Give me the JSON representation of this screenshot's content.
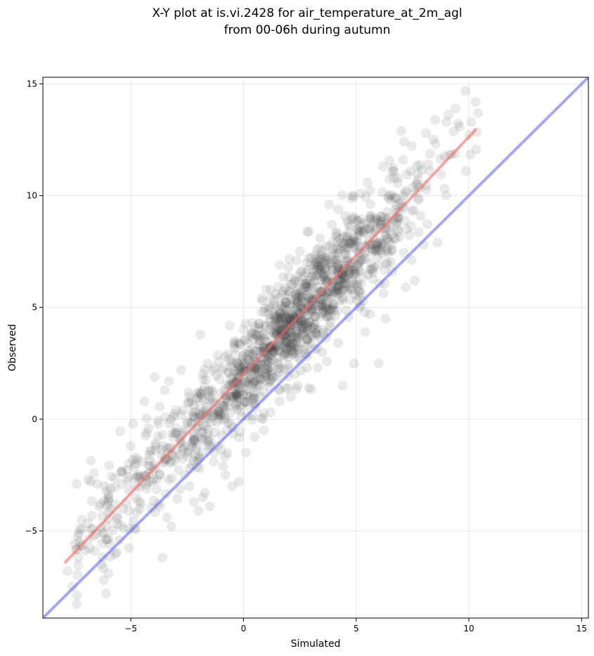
{
  "chart_data": {
    "type": "scatter",
    "title": "X-Y plot at is.vi.2428 for air_temperature_at_2m_agl",
    "subtitle": "from 00-06h during autumn",
    "xlabel": "Simulated",
    "ylabel": "Observed",
    "xlim": [
      -8.9,
      15.3
    ],
    "ylim": [
      -8.9,
      15.3
    ],
    "xticks": [
      -5,
      0,
      5,
      10,
      15
    ],
    "yticks": [
      -5,
      0,
      5,
      10,
      15
    ],
    "xtick_labels": [
      "−5",
      "0",
      "5",
      "10",
      "15"
    ],
    "ytick_labels": [
      "−5",
      "0",
      "5",
      "10",
      "15"
    ],
    "grid": true,
    "colors": {
      "points": "#333333",
      "fit_line": "#f26b6b",
      "identity_line": "#6b6bf2"
    },
    "lines": [
      {
        "kind": "identity",
        "x": [
          -8.9,
          15.3
        ],
        "y": [
          -8.9,
          15.3
        ]
      },
      {
        "kind": "fit",
        "x": [
          -7.9,
          10.3
        ],
        "y": [
          -6.4,
          12.95
        ]
      }
    ],
    "points": {
      "n": 1500,
      "cluster_slope": 1.06,
      "cluster_intercept": 1.97,
      "points": [
        [
          -7.8,
          -6.8
        ],
        [
          -7.6,
          -7.5
        ],
        [
          -7.3,
          -5.5
        ],
        [
          -7.4,
          -2.9
        ],
        [
          -6.9,
          -2.7
        ],
        [
          -6.5,
          -2.9
        ],
        [
          -6.6,
          -5.9
        ],
        [
          -6.3,
          -6.5
        ],
        [
          -6.2,
          -7.2
        ],
        [
          -6.1,
          -7.8
        ],
        [
          -6.0,
          -6.9
        ],
        [
          -5.9,
          -3.1
        ],
        [
          -5.7,
          -3.8
        ],
        [
          -5.5,
          -5.4
        ],
        [
          -5.3,
          -4.9
        ],
        [
          -5.1,
          -2.6
        ],
        [
          -5.0,
          -1.2
        ],
        [
          -4.9,
          -0.2
        ],
        [
          -4.7,
          -2.5
        ],
        [
          -4.6,
          -4.0
        ],
        [
          -4.4,
          0.8
        ],
        [
          -4.3,
          -0.6
        ],
        [
          -4.0,
          -2.7
        ],
        [
          -3.9,
          -2.2
        ],
        [
          -3.7,
          -3.9
        ],
        [
          -3.6,
          -6.2
        ],
        [
          -3.4,
          -4.4
        ],
        [
          -3.2,
          -4.8
        ],
        [
          -3.5,
          1.3
        ],
        [
          -3.3,
          1.7
        ],
        [
          -3.0,
          0.4
        ],
        [
          -2.8,
          -1.0
        ],
        [
          -2.6,
          -2.5
        ],
        [
          -2.4,
          -3.0
        ],
        [
          -2.2,
          -3.7
        ],
        [
          -2.0,
          -4.1
        ],
        [
          -1.8,
          -3.5
        ],
        [
          -1.5,
          -3.9
        ],
        [
          -1.3,
          -1.5
        ],
        [
          -0.9,
          -2.1
        ],
        [
          -0.8,
          -2.5
        ],
        [
          -0.5,
          -3.0
        ],
        [
          -0.2,
          -2.8
        ],
        [
          0.1,
          -1.5
        ],
        [
          0.5,
          -0.8
        ],
        [
          0.9,
          -0.5
        ],
        [
          1.2,
          0.3
        ],
        [
          1.6,
          0.8
        ],
        [
          2.1,
          1.0
        ],
        [
          2.4,
          1.5
        ],
        [
          2.9,
          1.4
        ],
        [
          3.3,
          2.3
        ],
        [
          3.7,
          2.6
        ],
        [
          4.2,
          3.4
        ],
        [
          4.4,
          1.5
        ],
        [
          4.9,
          2.5
        ],
        [
          5.4,
          3.9
        ],
        [
          5.6,
          4.7
        ],
        [
          6.0,
          2.5
        ],
        [
          6.3,
          4.5
        ],
        [
          6.6,
          6.6
        ],
        [
          7.2,
          5.9
        ],
        [
          7.6,
          6.2
        ],
        [
          8.0,
          7.8
        ],
        [
          8.6,
          7.9
        ],
        [
          9.0,
          10.0
        ],
        [
          9.4,
          13.9
        ],
        [
          9.6,
          13.1
        ],
        [
          10.1,
          13.3
        ],
        [
          10.4,
          13.7
        ],
        [
          10.3,
          14.2
        ],
        [
          9.0,
          13.3
        ],
        [
          8.5,
          13.4
        ],
        [
          8.1,
          12.8
        ],
        [
          7.4,
          11.1
        ],
        [
          7.0,
          12.9
        ],
        [
          6.6,
          11.1
        ],
        [
          6.2,
          11.3
        ],
        [
          5.5,
          10.6
        ],
        [
          5.2,
          10.1
        ],
        [
          4.8,
          10.0
        ],
        [
          4.5,
          9.1
        ],
        [
          4.2,
          9.4
        ],
        [
          3.8,
          9.6
        ],
        [
          3.4,
          8.1
        ],
        [
          2.9,
          8.4
        ],
        [
          2.5,
          7.5
        ],
        [
          2.0,
          6.8
        ],
        [
          1.6,
          6.9
        ],
        [
          1.2,
          5.8
        ],
        [
          0.8,
          4.8
        ],
        [
          0.4,
          4.3
        ],
        [
          0.0,
          4.0
        ],
        [
          -0.4,
          3.4
        ],
        [
          -0.8,
          2.8
        ],
        [
          -1.3,
          2.3
        ],
        [
          -1.8,
          1.8
        ],
        [
          -2.3,
          0.8
        ],
        [
          -2.7,
          0.4
        ],
        [
          -3.1,
          0.1
        ],
        [
          -3.6,
          -0.7
        ],
        [
          -4.1,
          -1.4
        ],
        [
          -4.8,
          -2.0
        ],
        [
          -5.4,
          -2.9
        ],
        [
          -6.0,
          -3.6
        ],
        [
          -6.7,
          -4.9
        ]
      ]
    }
  }
}
